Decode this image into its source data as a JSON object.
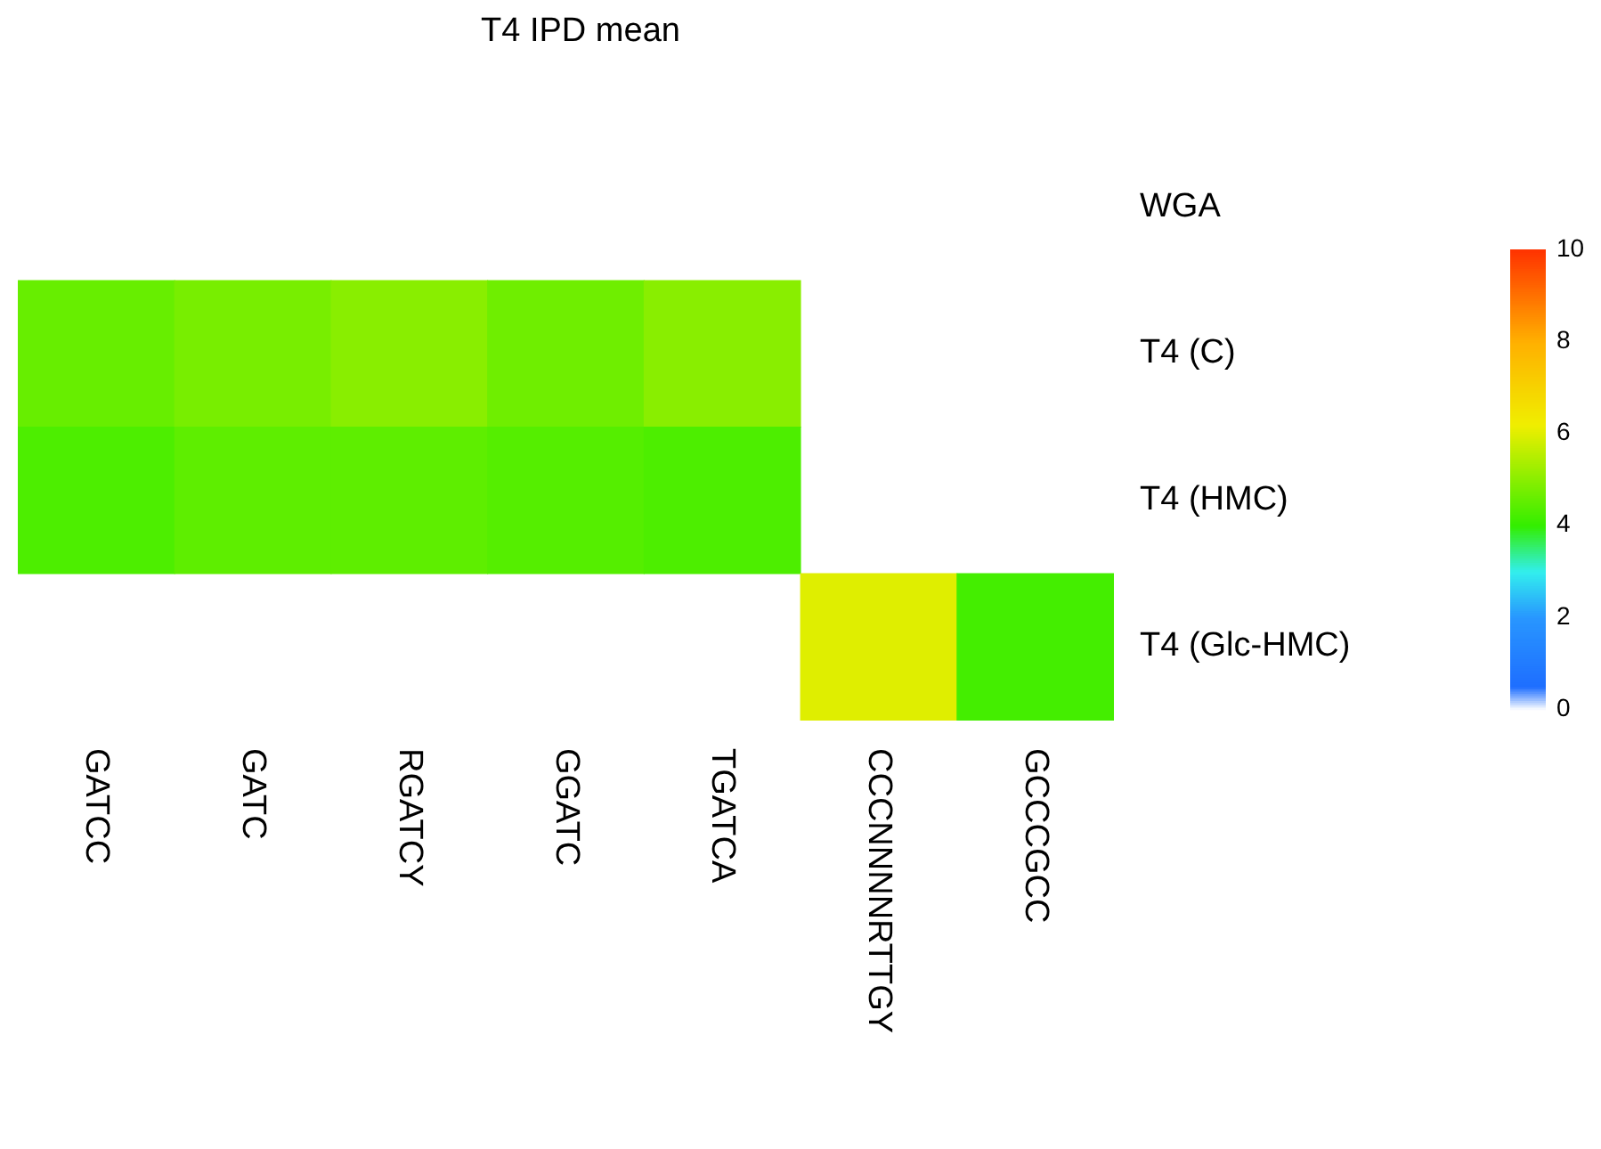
{
  "chart_data": {
    "type": "heatmap",
    "title": "T4 IPD mean",
    "categories": [
      "GATCC",
      "GATC",
      "RGATCY",
      "GGATC",
      "TGATCA",
      "CCCNNNNRTTGY",
      "GCCCGCC"
    ],
    "y_categories": [
      "WGA",
      "T4 (C)",
      "T4 (HMC)",
      "T4 (Glc-HMC)"
    ],
    "cells": [
      [
        null,
        null,
        null,
        null,
        null,
        null,
        null
      ],
      [
        4.6,
        4.8,
        5.0,
        4.7,
        5.0,
        null,
        null
      ],
      [
        4.3,
        4.5,
        4.5,
        4.4,
        4.3,
        null,
        null
      ],
      [
        null,
        null,
        null,
        null,
        null,
        6.0,
        4.2
      ]
    ],
    "clim": [
      0,
      10
    ],
    "cticks": [
      0,
      2,
      4,
      6,
      8,
      10
    ]
  }
}
